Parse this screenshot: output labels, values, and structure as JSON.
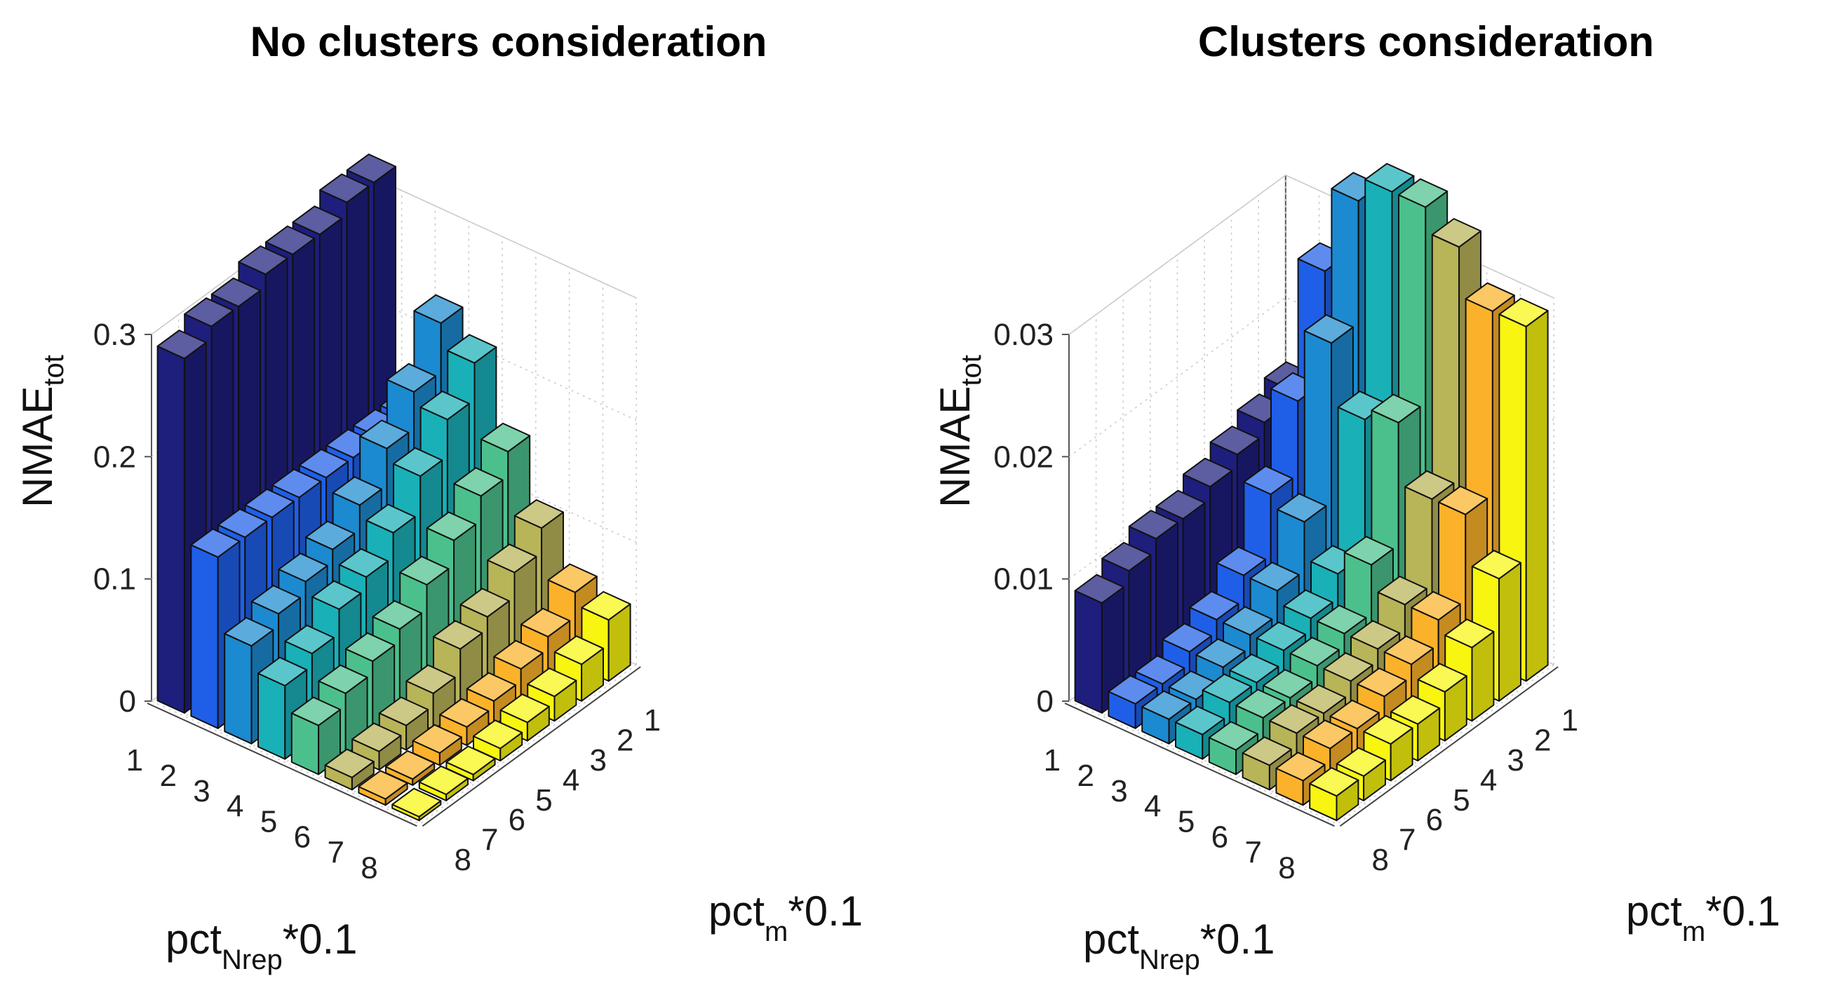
{
  "chart_data": [
    {
      "type": "bar3",
      "title": "No clusters consideration",
      "zlabel": "NMAE",
      "zlabel_sub": "tot",
      "xlabel": "pct",
      "xlabel_sub": "Nrep",
      "xlabel_suffix": "*0.1",
      "ylabel": "pct",
      "ylabel_sub": "m",
      "ylabel_suffix": "*0.1",
      "zlim": [
        0,
        0.3
      ],
      "zticks": [
        "0",
        "0.1",
        "0.2",
        "0.3"
      ],
      "xticks": [
        "1",
        "2",
        "3",
        "4",
        "5",
        "6",
        "7",
        "8"
      ],
      "yticks": [
        "1",
        "2",
        "3",
        "4",
        "5",
        "6",
        "7",
        "8"
      ],
      "grid": true,
      "colors": [
        "#1e1e7c",
        "#1f5fe8",
        "#1c8ad0",
        "#1ab0b8",
        "#4cc08c",
        "#b8b458",
        "#fbb22a",
        "#f8f510"
      ],
      "values": [
        [
          0.32,
          0.32,
          0.31,
          0.31,
          0.31,
          0.3,
          0.3,
          0.29
        ],
        [
          0.14,
          0.14,
          0.14,
          0.14,
          0.14,
          0.14,
          0.14,
          0.14
        ],
        [
          0.23,
          0.19,
          0.16,
          0.13,
          0.11,
          0.1,
          0.09,
          0.08
        ],
        [
          0.21,
          0.18,
          0.15,
          0.12,
          0.1,
          0.09,
          0.07,
          0.06
        ],
        [
          0.15,
          0.13,
          0.11,
          0.09,
          0.07,
          0.06,
          0.05,
          0.04
        ],
        [
          0.1,
          0.08,
          0.06,
          0.05,
          0.03,
          0.02,
          0.015,
          0.01
        ],
        [
          0.06,
          0.04,
          0.03,
          0.02,
          0.015,
          0.01,
          0.005,
          0.005
        ],
        [
          0.05,
          0.03,
          0.02,
          0.015,
          0.01,
          0.005,
          0.005,
          0.003
        ]
      ]
    },
    {
      "type": "bar3",
      "title": "Clusters consideration",
      "zlabel": "NMAE",
      "zlabel_sub": "tot",
      "xlabel": "pct",
      "xlabel_sub": "Nrep",
      "xlabel_suffix": "*0.1",
      "ylabel": "pct",
      "ylabel_sub": "m",
      "ylabel_suffix": "*0.1",
      "zlim": [
        0,
        0.03
      ],
      "zticks": [
        "0",
        "0.01",
        "0.02",
        "0.03"
      ],
      "xticks": [
        "1",
        "2",
        "3",
        "4",
        "5",
        "6",
        "7",
        "8"
      ],
      "yticks": [
        "1",
        "2",
        "3",
        "4",
        "5",
        "6",
        "7",
        "8"
      ],
      "grid": true,
      "colors": [
        "#1e1e7c",
        "#1f5fe8",
        "#1c8ad0",
        "#1ab0b8",
        "#4cc08c",
        "#b8b458",
        "#fbb22a",
        "#f8f510"
      ],
      "values": [
        [
          0.015,
          0.014,
          0.013,
          0.012,
          0.011,
          0.011,
          0.01,
          0.009
        ],
        [
          0.026,
          0.017,
          0.011,
          0.006,
          0.004,
          0.003,
          0.002,
          0.002
        ],
        [
          0.033,
          0.023,
          0.01,
          0.006,
          0.004,
          0.003,
          0.002,
          0.002
        ],
        [
          0.035,
          0.018,
          0.007,
          0.005,
          0.004,
          0.003,
          0.003,
          0.002
        ],
        [
          0.035,
          0.019,
          0.009,
          0.005,
          0.004,
          0.003,
          0.003,
          0.002
        ],
        [
          0.033,
          0.014,
          0.007,
          0.005,
          0.004,
          0.003,
          0.003,
          0.002
        ],
        [
          0.029,
          0.014,
          0.007,
          0.005,
          0.004,
          0.003,
          0.003,
          0.002
        ],
        [
          0.029,
          0.01,
          0.006,
          0.004,
          0.003,
          0.003,
          0.002,
          0.002
        ]
      ]
    }
  ]
}
